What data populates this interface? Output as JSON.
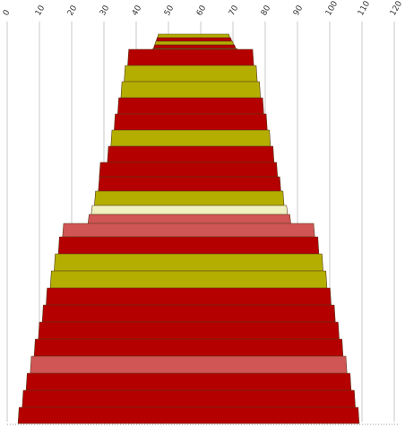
{
  "chart_data": {
    "type": "bar",
    "title": "",
    "xlabel": "",
    "ylabel": "",
    "xlim": [
      0,
      120
    ],
    "grid": true,
    "ticks": [
      0,
      10,
      20,
      30,
      40,
      50,
      60,
      70,
      80,
      90,
      100,
      110,
      120
    ],
    "colors": {
      "red": "#b50000",
      "olive": "#b3ae00",
      "pink": "#d05555",
      "cream": "#f0f0c0",
      "brown": "#8b5a1a",
      "outline": "#5a3a1a",
      "grid": "#c8c8c8"
    },
    "layers": [
      {
        "left": 46.9,
        "right": 68.7,
        "color": "olive"
      },
      {
        "left": 46.5,
        "right": 69.3,
        "color": "red"
      },
      {
        "left": 46.1,
        "right": 69.9,
        "color": "olive"
      },
      {
        "left": 45.7,
        "right": 70.5,
        "color": "red"
      },
      {
        "left": 45.3,
        "right": 71.1,
        "color": "brown"
      },
      {
        "left": 37.7,
        "right": 76.1,
        "color": "red"
      },
      {
        "left": 36.6,
        "right": 77.2,
        "color": "olive"
      },
      {
        "left": 35.6,
        "right": 78.2,
        "color": "olive"
      },
      {
        "left": 34.6,
        "right": 79.2,
        "color": "red"
      },
      {
        "left": 33.5,
        "right": 80.3,
        "color": "red"
      },
      {
        "left": 32.5,
        "right": 81.3,
        "color": "olive"
      },
      {
        "left": 31.4,
        "right": 82.4,
        "color": "red"
      },
      {
        "left": 28.9,
        "right": 83.5,
        "color": "red"
      },
      {
        "left": 28.6,
        "right": 84.5,
        "color": "red"
      },
      {
        "left": 27.4,
        "right": 85.5,
        "color": "olive"
      },
      {
        "left": 26.4,
        "right": 86.6,
        "color": "cream"
      },
      {
        "left": 25.4,
        "right": 87.6,
        "color": "pink"
      },
      {
        "left": 17.5,
        "right": 95.0,
        "color": "pink"
      },
      {
        "left": 16.2,
        "right": 96.3,
        "color": "red"
      },
      {
        "left": 14.9,
        "right": 97.6,
        "color": "olive"
      },
      {
        "left": 13.7,
        "right": 98.8,
        "color": "olive"
      },
      {
        "left": 12.4,
        "right": 100.1,
        "color": "red"
      },
      {
        "left": 11.2,
        "right": 101.4,
        "color": "red"
      },
      {
        "left": 10.0,
        "right": 102.6,
        "color": "red"
      },
      {
        "left": 8.7,
        "right": 103.8,
        "color": "red"
      },
      {
        "left": 7.5,
        "right": 105.0,
        "color": "pink"
      },
      {
        "left": 6.2,
        "right": 106.3,
        "color": "red"
      },
      {
        "left": 5.0,
        "right": 107.6,
        "color": "red"
      },
      {
        "left": 3.7,
        "right": 108.8,
        "color": "red"
      }
    ]
  }
}
